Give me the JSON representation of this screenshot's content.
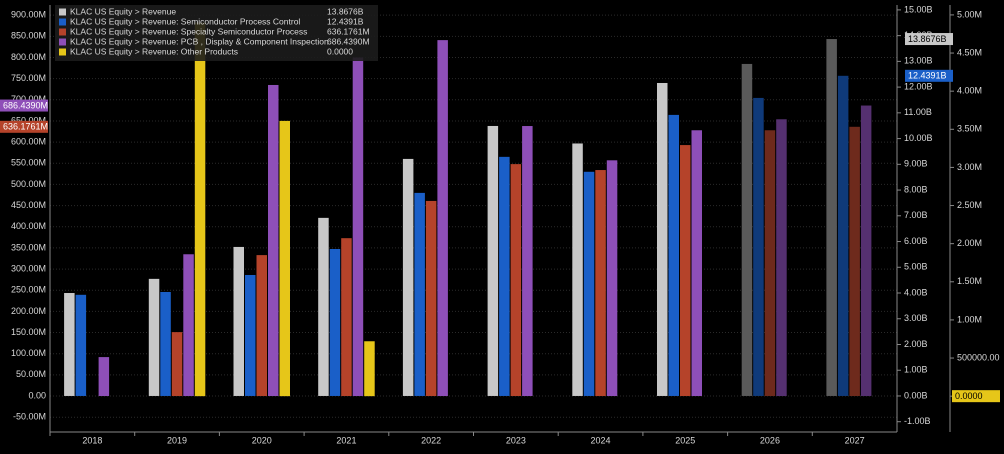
{
  "chart_data": {
    "type": "bar",
    "categories": [
      "2018",
      "2019",
      "2020",
      "2021",
      "2022",
      "2023",
      "2024",
      "2025",
      "2026",
      "2027"
    ],
    "series": [
      {
        "name": "KLAC US Equity > Revenue",
        "axis": "y2",
        "color": "#c8c8c8",
        "bar_colors": [
          "#c8c8c8",
          "#c8c8c8",
          "#c8c8c8",
          "#c8c8c8",
          "#c8c8c8",
          "#c8c8c8",
          "#c8c8c8",
          "#c8c8c8",
          "#5a5a5a",
          "#5a5a5a"
        ],
        "values": [
          4.0,
          4.55,
          5.79,
          6.92,
          9.21,
          10.49,
          9.81,
          12.16,
          12.9,
          13.8676
        ],
        "value_labels": [
          null,
          null,
          null,
          null,
          null,
          null,
          null,
          null,
          null,
          "13.8676B"
        ]
      },
      {
        "name": "KLAC US Equity > Revenue: Semiconductor Process Control",
        "axis": "y2",
        "color": "#1a5fc8",
        "bar_colors": [
          "#1a5fc8",
          "#1a5fc8",
          "#1a5fc8",
          "#1a5fc8",
          "#1a5fc8",
          "#1a5fc8",
          "#1a5fc8",
          "#1a5fc8",
          "#0f3a7a",
          "#0f3a7a"
        ],
        "values": [
          3.93,
          4.04,
          4.7,
          5.71,
          7.89,
          9.29,
          8.71,
          10.92,
          11.58,
          12.4391
        ],
        "value_labels": [
          null,
          null,
          null,
          null,
          null,
          null,
          null,
          null,
          null,
          "12.4391B"
        ]
      },
      {
        "name": "KLAC US Equity > Revenue: Specialty Semiconductor Process",
        "axis": "y",
        "color": "#b5432a",
        "bar_colors": [
          "#b5432a",
          "#b5432a",
          "#b5432a",
          "#b5432a",
          "#b5432a",
          "#b5432a",
          "#b5432a",
          "#b5432a",
          "#6e2a1c",
          "#6e2a1c"
        ],
        "values": [
          null,
          151,
          333,
          373,
          461,
          548,
          534,
          593,
          628,
          636.1761
        ],
        "value_labels": [
          null,
          null,
          null,
          null,
          null,
          null,
          null,
          null,
          null,
          "636.1761M"
        ]
      },
      {
        "name": "KLAC US Equity > Revenue: PCB , Display & Component Inspection",
        "axis": "y",
        "color": "#8e4fb8",
        "bar_colors": [
          "#8e4fb8",
          "#8e4fb8",
          "#8e4fb8",
          "#8e4fb8",
          "#8e4fb8",
          "#8e4fb8",
          "#8e4fb8",
          "#8e4fb8",
          "#553070",
          "#553070"
        ],
        "values": [
          92,
          335,
          735,
          800,
          841,
          638,
          557,
          628,
          654,
          686.439
        ],
        "value_labels": [
          null,
          null,
          null,
          null,
          null,
          null,
          null,
          null,
          null,
          "686.4390M"
        ]
      },
      {
        "name": "KLAC US Equity > Revenue: Other Products",
        "axis": "y3",
        "color": "#e6c619",
        "bar_colors": [
          "#e6c619",
          "#e6c619",
          "#e6c619",
          "#e6c619",
          "#e6c619",
          "#e6c619",
          "#e6c619",
          "#e6c619",
          "#e6c619",
          "#e6c619"
        ],
        "values": [
          null,
          4.9,
          3.61,
          0.72,
          null,
          null,
          null,
          null,
          null,
          0
        ],
        "value_labels": [
          null,
          null,
          null,
          null,
          null,
          null,
          null,
          null,
          null,
          "0.0000"
        ]
      }
    ],
    "ylim": [
      -85,
      924
    ],
    "yticks": [
      {
        "value": -50,
        "label": "-50.00M"
      },
      {
        "value": 0,
        "label": "0.00"
      },
      {
        "value": 50,
        "label": "50.00M"
      },
      {
        "value": 100,
        "label": "100.00M"
      },
      {
        "value": 150,
        "label": "150.00M"
      },
      {
        "value": 200,
        "label": "200.00M"
      },
      {
        "value": 250,
        "label": "250.00M"
      },
      {
        "value": 300,
        "label": "300.00M"
      },
      {
        "value": 350,
        "label": "350.00M"
      },
      {
        "value": 400,
        "label": "400.00M"
      },
      {
        "value": 450,
        "label": "450.00M"
      },
      {
        "value": 500,
        "label": "500.00M"
      },
      {
        "value": 550,
        "label": "550.00M"
      },
      {
        "value": 600,
        "label": "600.00M"
      },
      {
        "value": 650,
        "label": "650.00M"
      },
      {
        "value": 700,
        "label": "700.00M"
      },
      {
        "value": 750,
        "label": "750.00M"
      },
      {
        "value": 800,
        "label": "800.00M"
      },
      {
        "value": 850,
        "label": "850.00M"
      },
      {
        "value": 900,
        "label": "900.00M"
      }
    ],
    "y2lim": [
      -1.4,
      15.19
    ],
    "y2ticks": [
      {
        "value": -1,
        "label": "-1.00B"
      },
      {
        "value": 0,
        "label": "0.00B"
      },
      {
        "value": 1,
        "label": "1.00B"
      },
      {
        "value": 2,
        "label": "2.00B"
      },
      {
        "value": 3,
        "label": "3.00B"
      },
      {
        "value": 4,
        "label": "4.00B"
      },
      {
        "value": 5,
        "label": "5.00B"
      },
      {
        "value": 6,
        "label": "6.00B"
      },
      {
        "value": 7,
        "label": "7.00B"
      },
      {
        "value": 8,
        "label": "8.00B"
      },
      {
        "value": 9,
        "label": "9.00B"
      },
      {
        "value": 10,
        "label": "10.00B"
      },
      {
        "value": 11,
        "label": "11.00B"
      },
      {
        "value": 12,
        "label": "12.00B"
      },
      {
        "value": 13,
        "label": "13.00B"
      },
      {
        "value": 14,
        "label": "14.00B"
      },
      {
        "value": 15,
        "label": "15.00B"
      }
    ],
    "y3lim": [
      -0.47,
      5.13
    ],
    "y3ticks": [
      {
        "value": 0,
        "label": "0.0000"
      },
      {
        "value": 0.5,
        "label": "500000.00"
      },
      {
        "value": 1,
        "label": "1.00M"
      },
      {
        "value": 1.5,
        "label": "1.50M"
      },
      {
        "value": 2,
        "label": "2.00M"
      },
      {
        "value": 2.5,
        "label": "2.50M"
      },
      {
        "value": 3,
        "label": "3.00M"
      },
      {
        "value": 3.5,
        "label": "3.50M"
      },
      {
        "value": 4,
        "label": "4.00M"
      },
      {
        "value": 4.5,
        "label": "4.50M"
      },
      {
        "value": 5,
        "label": "5.00M"
      }
    ]
  }
}
